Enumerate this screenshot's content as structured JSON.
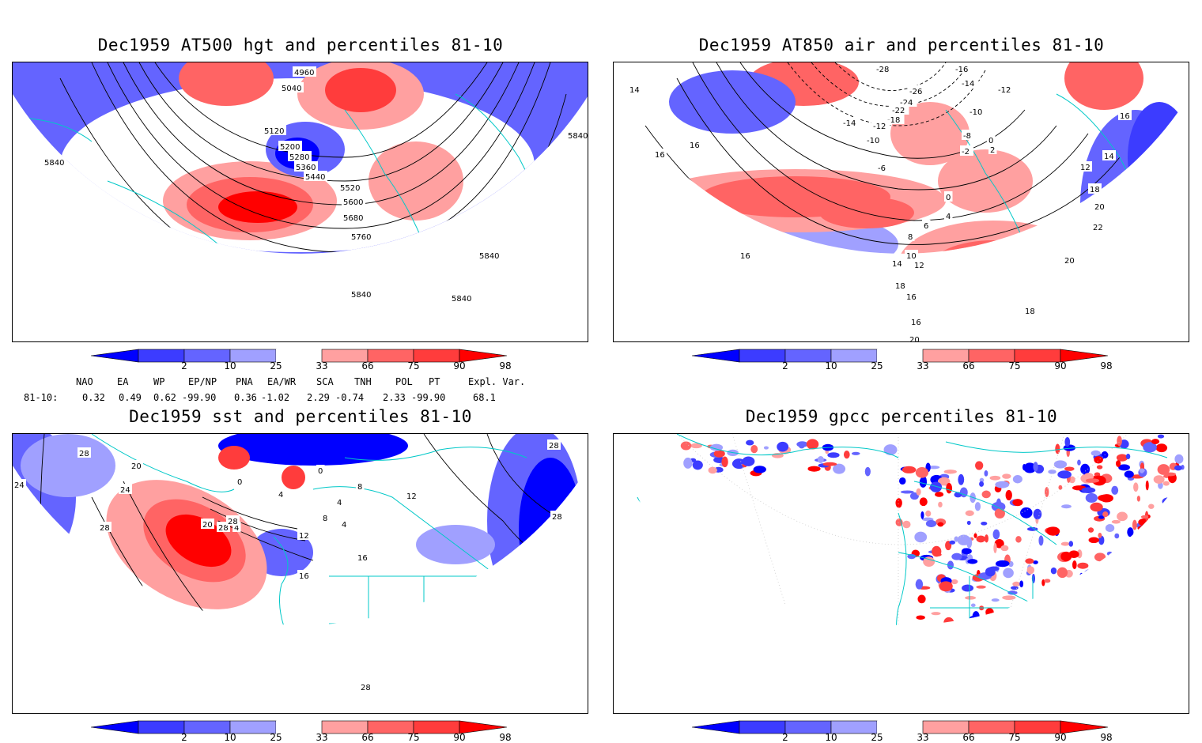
{
  "panels": [
    {
      "id": "hgt500",
      "title": "Dec1959 AT500 hgt and percentiles 81-10",
      "contour_labels": [
        "4960",
        "5040",
        "5120",
        "5200",
        "5280",
        "5360",
        "5440",
        "5520",
        "5600",
        "5680",
        "5760",
        "5840",
        "5840",
        "5840",
        "5840",
        "5840"
      ]
    },
    {
      "id": "air850",
      "title": "Dec1959 AT850 air and percentiles 81-10",
      "contour_labels": [
        "-28",
        "-16",
        "-14",
        "-12",
        "-10",
        "-8",
        "-2",
        "2",
        "0",
        "-26",
        "-24",
        "-22",
        "-18",
        "-14",
        "-12",
        "-10",
        "-6",
        "0",
        "4",
        "6",
        "8",
        "10",
        "12",
        "12",
        "14",
        "14",
        "16",
        "16",
        "16",
        "16",
        "18",
        "18",
        "18",
        "20",
        "20",
        "20",
        "22",
        "14",
        "16",
        "16"
      ]
    },
    {
      "id": "sst",
      "title": "Dec1959 sst and percentiles 81-10",
      "contour_labels": [
        "28",
        "20",
        "24",
        "28",
        "24",
        "28",
        "20",
        "4",
        "0",
        "4",
        "0",
        "4",
        "8",
        "4",
        "8",
        "12",
        "12",
        "16",
        "16",
        "28",
        "28",
        "28",
        "28"
      ]
    },
    {
      "id": "gpcc",
      "title": "Dec1959 gpcc percentiles 81-10",
      "contour_labels": []
    }
  ],
  "colorbar": {
    "ticks": [
      "2",
      "10",
      "25",
      "33",
      "66",
      "75",
      "90",
      "98"
    ],
    "colors": [
      "#0000ff",
      "#3c3cff",
      "#6464ff",
      "#a0a0ff",
      "#ffffff",
      "#ffa0a0",
      "#ff6464",
      "#ff3c3c",
      "#ff0000"
    ]
  },
  "indices": {
    "headers": [
      "NAO",
      "EA",
      "WP",
      "EP/NP",
      "PNA",
      "EA/WR",
      "SCA",
      "TNH",
      "POL",
      "PT",
      "Expl. Var."
    ],
    "row_label": "81-10:",
    "values": [
      "0.32",
      "0.49",
      "0.62",
      "-99.90",
      "0.36",
      "-1.02",
      "2.29",
      "-0.74",
      "2.33",
      "-99.90",
      "68.1"
    ]
  }
}
